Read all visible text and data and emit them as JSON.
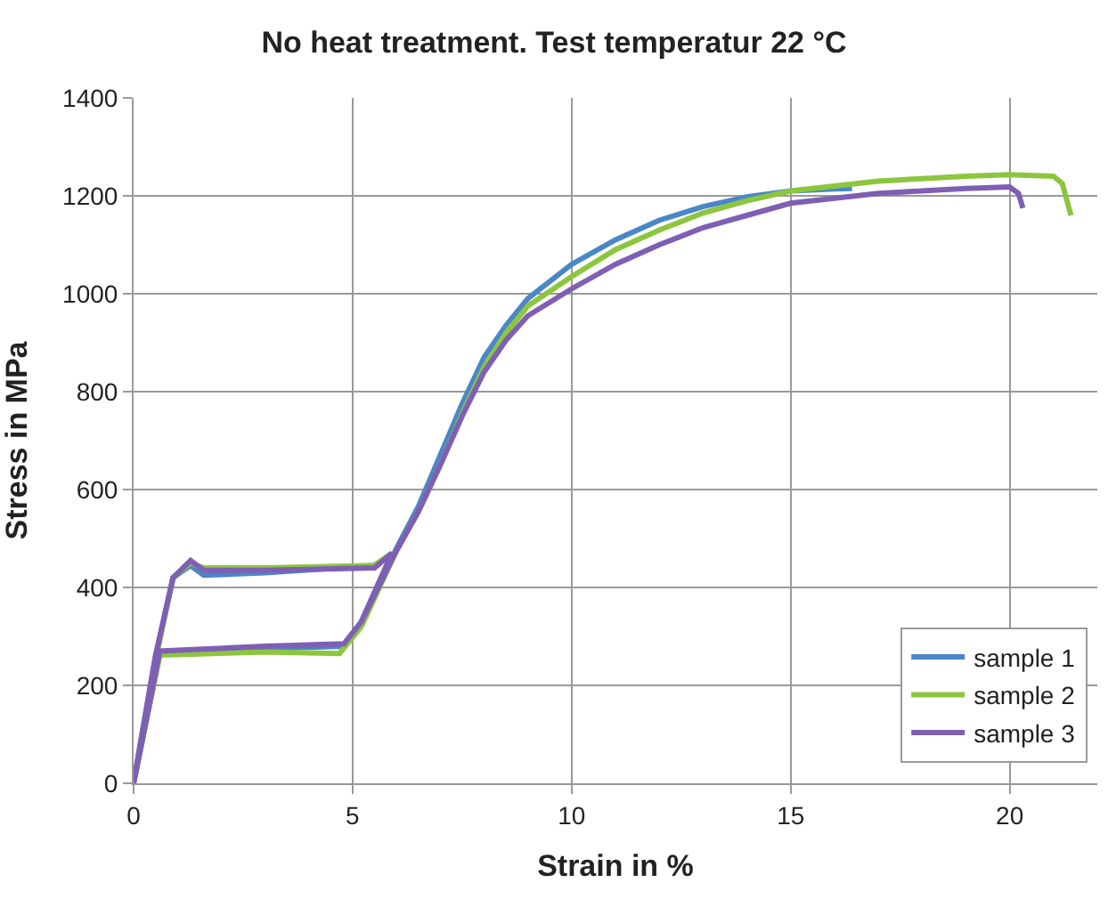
{
  "chart_data": {
    "type": "line",
    "title": "No heat treatment. Test temperatur 22 °C",
    "xlabel": "Strain in %",
    "ylabel": "Stress in MPa",
    "xlim": [
      0,
      22
    ],
    "xticks": [
      0,
      5,
      10,
      15,
      20
    ],
    "ylim": [
      0,
      1400
    ],
    "yticks": [
      0,
      200,
      400,
      600,
      800,
      1000,
      1200,
      1400
    ],
    "grid": true,
    "legend": "bottom right",
    "marker": "none",
    "line_style": "solid",
    "series": [
      {
        "name": "sample 1",
        "color": "#4a86c8",
        "x": [
          0,
          0.5,
          0.9,
          1.3,
          1.6,
          3,
          5.5,
          5.9,
          5.2,
          4.8,
          3,
          0.6,
          0,
          0.6,
          3,
          4.8,
          5.2,
          6,
          6.5,
          7,
          7.5,
          8,
          8.5,
          9,
          10,
          11,
          12,
          13,
          14,
          15,
          16,
          16.4
        ],
        "values": [
          0,
          260,
          420,
          445,
          425,
          430,
          445,
          470,
          330,
          280,
          275,
          265,
          0,
          265,
          275,
          280,
          330,
          480,
          565,
          670,
          775,
          870,
          935,
          990,
          1060,
          1110,
          1150,
          1178,
          1198,
          1210,
          1214,
          1215
        ]
      },
      {
        "name": "sample 2",
        "color": "#8cc63e",
        "x": [
          0,
          0.5,
          0.9,
          1.3,
          1.6,
          3,
          5.5,
          5.9,
          5.2,
          4.7,
          3,
          0.6,
          0,
          0.6,
          3,
          4.7,
          5.2,
          6,
          6.5,
          7,
          7.5,
          8,
          8.5,
          9,
          10,
          11,
          12,
          13,
          14,
          15,
          17,
          19,
          20,
          21,
          21.2,
          21.4
        ],
        "values": [
          0,
          250,
          420,
          450,
          440,
          440,
          445,
          470,
          320,
          265,
          268,
          262,
          0,
          262,
          268,
          265,
          320,
          475,
          555,
          650,
          755,
          850,
          920,
          975,
          1035,
          1090,
          1130,
          1165,
          1190,
          1210,
          1230,
          1240,
          1243,
          1240,
          1225,
          1160
        ]
      },
      {
        "name": "sample 3",
        "color": "#7f5fb4",
        "x": [
          0,
          0.5,
          0.9,
          1.3,
          1.6,
          3,
          5.5,
          5.9,
          5.2,
          4.8,
          3,
          0.6,
          0,
          0.6,
          3,
          4.8,
          5.2,
          6,
          6.5,
          7,
          7.5,
          8,
          8.5,
          9,
          10,
          11,
          12,
          13,
          14,
          15,
          17,
          19,
          20,
          20.2,
          20.3
        ],
        "values": [
          0,
          260,
          420,
          455,
          435,
          435,
          440,
          470,
          330,
          285,
          280,
          270,
          0,
          270,
          280,
          285,
          330,
          475,
          555,
          650,
          750,
          840,
          905,
          955,
          1010,
          1060,
          1100,
          1135,
          1160,
          1185,
          1205,
          1215,
          1218,
          1205,
          1175
        ]
      }
    ]
  }
}
